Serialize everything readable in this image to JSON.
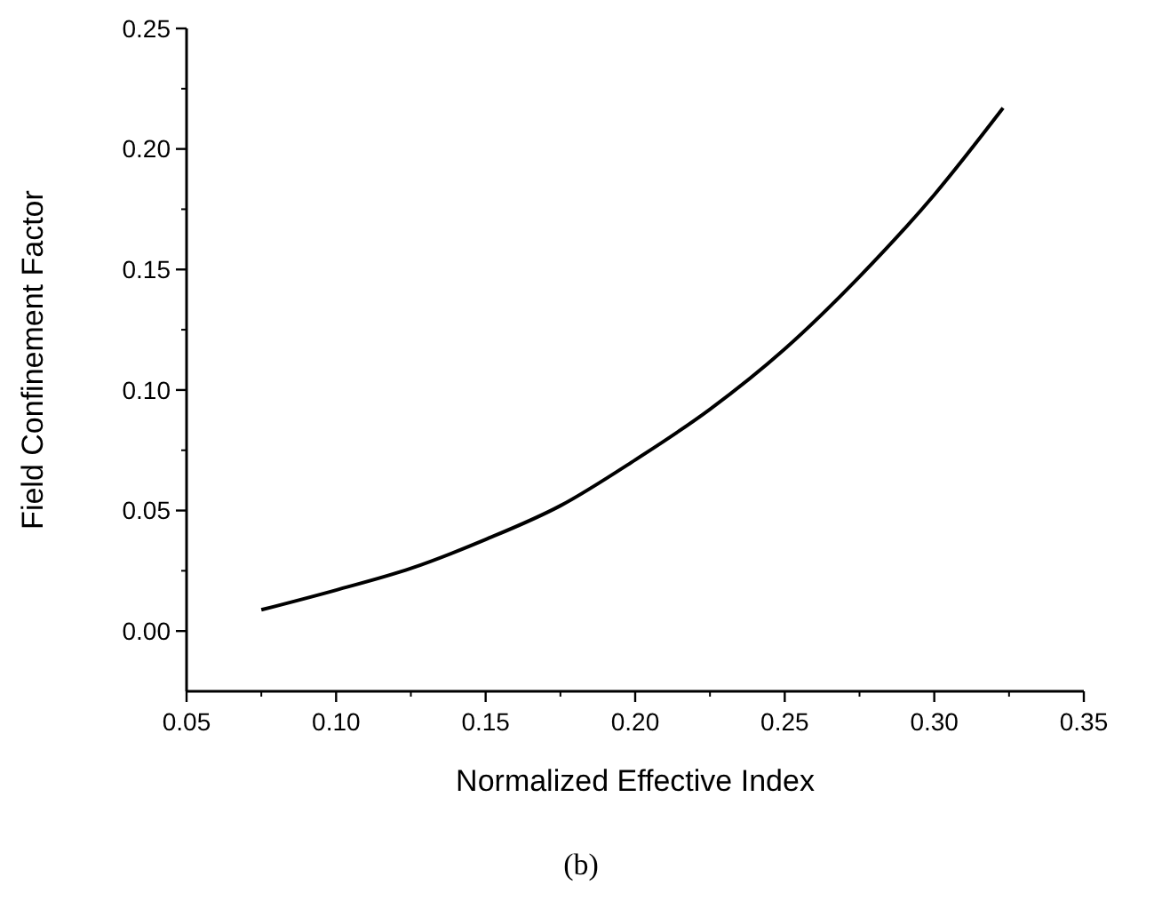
{
  "chart_data": {
    "type": "line",
    "xlabel": "Normalized Effective Index",
    "ylabel": "Field Confinement Factor",
    "annotations": [
      "(b)"
    ],
    "x": [
      0.075,
      0.1,
      0.125,
      0.15,
      0.175,
      0.2,
      0.225,
      0.25,
      0.275,
      0.3,
      0.323
    ],
    "series": [
      {
        "color": "#000000",
        "values": [
          0.0088,
          0.017,
          0.026,
          0.038,
          0.052,
          0.071,
          0.092,
          0.117,
          0.147,
          0.181,
          0.217
        ]
      }
    ],
    "xlim": [
      0.05,
      0.35
    ],
    "xticks": [
      {
        "value": 0.05,
        "label": "0.05"
      },
      {
        "value": 0.1,
        "label": "0.10"
      },
      {
        "value": 0.15,
        "label": "0.15"
      },
      {
        "value": 0.2,
        "label": "0.20"
      },
      {
        "value": 0.25,
        "label": "0.25"
      },
      {
        "value": 0.3,
        "label": "0.30"
      },
      {
        "value": 0.35,
        "label": "0.35"
      }
    ],
    "ylim": [
      -0.025,
      0.25
    ],
    "yticks": [
      {
        "value": 0,
        "label": "0.00"
      },
      {
        "value": 0.05,
        "label": "0.05"
      },
      {
        "value": 0.1,
        "label": "0.10"
      },
      {
        "value": 0.15,
        "label": "0.15"
      },
      {
        "value": 0.2,
        "label": "0.20"
      },
      {
        "value": 0.25,
        "label": "0.25"
      }
    ],
    "marker": "none",
    "line_style": "solid"
  }
}
